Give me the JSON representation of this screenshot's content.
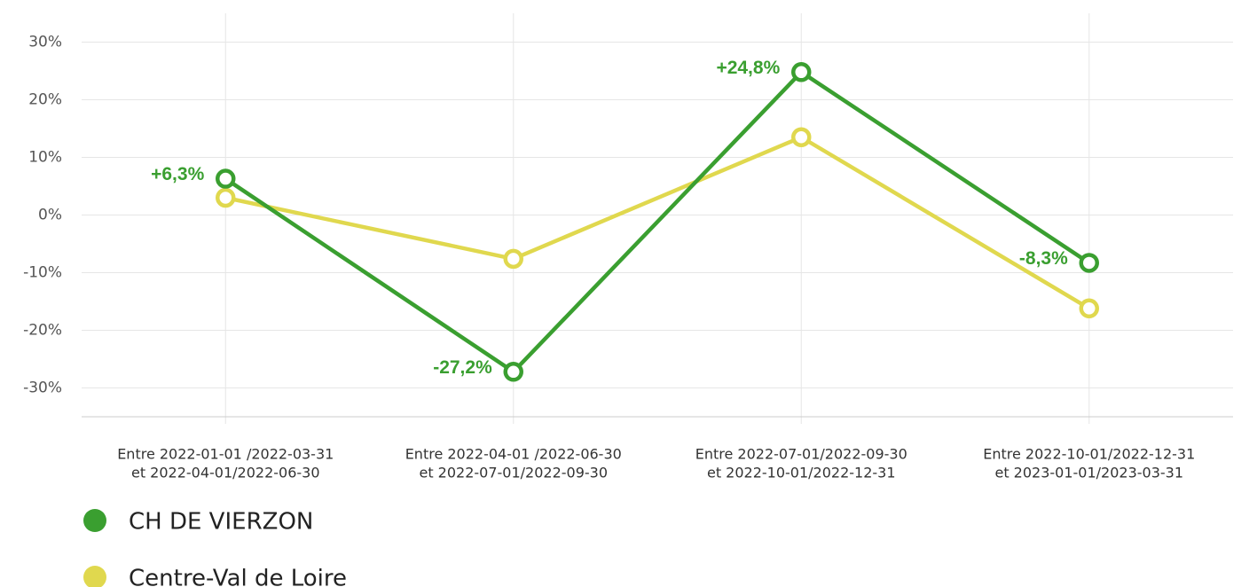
{
  "chart_data": {
    "type": "line",
    "categories": [
      [
        "Entre 2022-01-01 /2022-03-31",
        "et 2022-04-01/2022-06-30"
      ],
      [
        "Entre 2022-04-01 /2022-06-30",
        "et 2022-07-01/2022-09-30"
      ],
      [
        "Entre 2022-07-01/2022-09-30",
        "et 2022-10-01/2022-12-31"
      ],
      [
        "Entre 2022-10-01/2022-12-31",
        "et 2023-01-01/2023-03-31"
      ]
    ],
    "series": [
      {
        "name": "CH DE VIERZON",
        "color": "#3a9f30",
        "values": [
          6.3,
          -27.2,
          24.8,
          -8.3
        ],
        "value_labels": [
          "+6,3%",
          "-27,2%",
          "+24,8%",
          "-8,3%"
        ]
      },
      {
        "name": "Centre-Val de Loire",
        "color": "#e0d84e",
        "values": [
          3,
          -7.6,
          13.5,
          -16.2
        ]
      }
    ],
    "ylim": [
      -35,
      35
    ],
    "yticks": [
      {
        "value": 30,
        "label": "30%"
      },
      {
        "value": 20,
        "label": "20%"
      },
      {
        "value": 10,
        "label": "10%"
      },
      {
        "value": 0,
        "label": "0%"
      },
      {
        "value": -10,
        "label": "-10%"
      },
      {
        "value": -20,
        "label": "-20%"
      },
      {
        "value": -30,
        "label": "-30%"
      }
    ],
    "grid": true,
    "legend": "bottom-left"
  }
}
